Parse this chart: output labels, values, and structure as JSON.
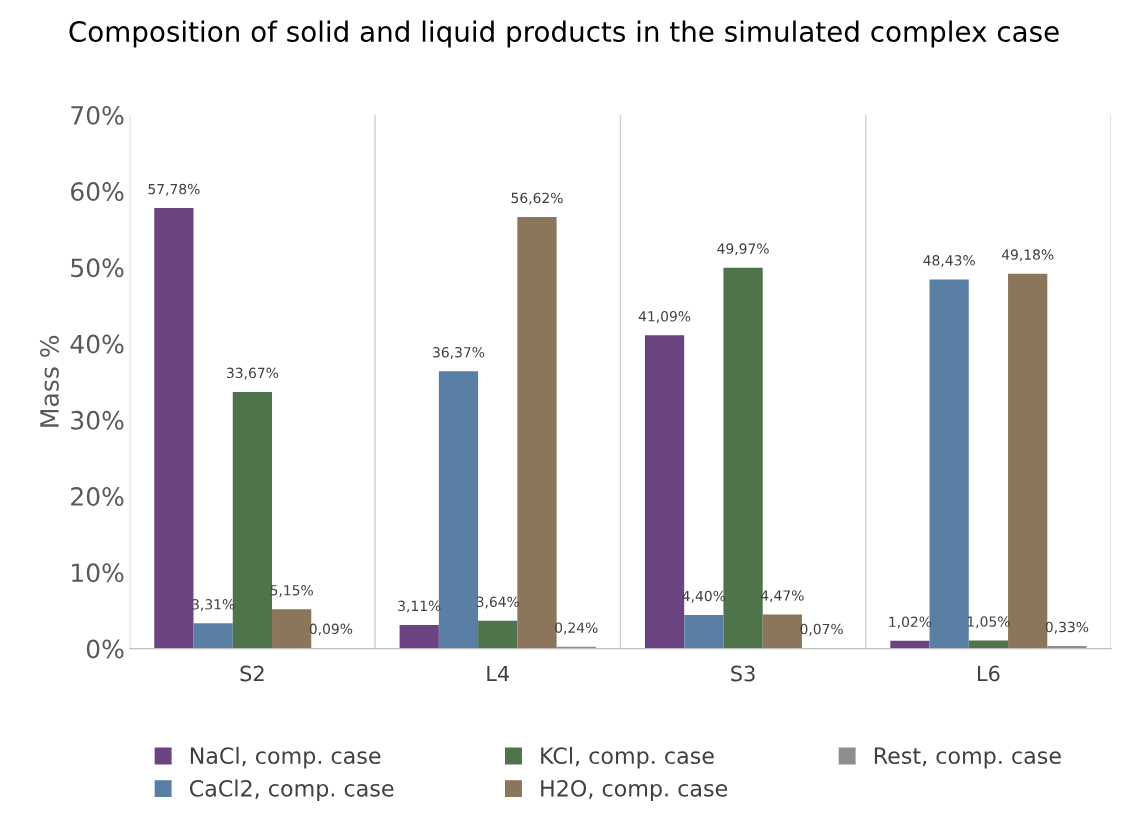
{
  "chart_data": {
    "type": "bar",
    "title": "Composition of solid and liquid products in the simulated complex case",
    "ylabel": "Mass %",
    "categories": [
      "S2",
      "L4",
      "S3",
      "L6"
    ],
    "series": [
      {
        "name": "NaCl, comp. case",
        "color": "#6b4380",
        "values": [
          57.78,
          3.11,
          41.09,
          1.02
        ],
        "value_labels": [
          "57,78%",
          "3,11%",
          "41,09%",
          "1,02%"
        ]
      },
      {
        "name": "CaCl2, comp. case",
        "color": "#5a7fa5",
        "values": [
          3.31,
          36.37,
          4.4,
          48.43
        ],
        "value_labels": [
          "3,31%",
          "36,37%",
          "4,40%",
          "48,43%"
        ]
      },
      {
        "name": "KCl, comp. case",
        "color": "#4f734b",
        "values": [
          33.67,
          3.64,
          49.97,
          1.05
        ],
        "value_labels": [
          "33,67%",
          "3,64%",
          "49,97%",
          "1,05%"
        ]
      },
      {
        "name": "H2O, comp. case",
        "color": "#8b765b",
        "values": [
          5.15,
          56.62,
          4.47,
          49.18
        ],
        "value_labels": [
          "5,15%",
          "56,62%",
          "4,47%",
          "49,18%"
        ]
      },
      {
        "name": "Rest, comp. case",
        "color": "#8e8e8e",
        "values": [
          0.09,
          0.24,
          0.07,
          0.33
        ],
        "value_labels": [
          "0,09%",
          "0,24%",
          "0,07%",
          "0,33%"
        ]
      }
    ],
    "ylim": [
      0,
      70
    ],
    "yticks": [
      {
        "value": 0,
        "label": "0%"
      },
      {
        "value": 10,
        "label": "10%"
      },
      {
        "value": 20,
        "label": "20%"
      },
      {
        "value": 30,
        "label": "30%"
      },
      {
        "value": 40,
        "label": "40%"
      },
      {
        "value": 50,
        "label": "50%"
      },
      {
        "value": 60,
        "label": "60%"
      },
      {
        "value": 70,
        "label": "70%"
      }
    ],
    "grid": "x",
    "legend": "bottom"
  }
}
